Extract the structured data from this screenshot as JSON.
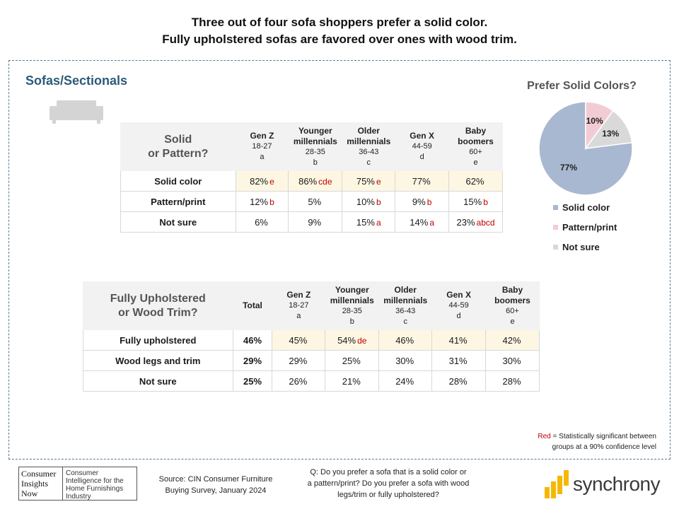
{
  "title_line1": "Three out of four sofa shoppers prefer a solid color.",
  "title_line2": "Fully upholstered sofas are favored over ones with wood trim.",
  "section_title": "Sofas/Sectionals",
  "colors": {
    "accent": "#2e5a78",
    "highlight_row": "#fdf6e3",
    "significance": "#c00000"
  },
  "chart_data": [
    {
      "type": "table",
      "question_line1": "Solid",
      "question_line2": "or Pattern?",
      "columns": [
        {
          "name": "Gen Z",
          "sub1": "18-27",
          "sub2": "a"
        },
        {
          "name": "Younger millennials",
          "sub1": "28-35",
          "sub2": "b"
        },
        {
          "name": "Older millennials",
          "sub1": "36-43",
          "sub2": "c"
        },
        {
          "name": "Gen X",
          "sub1": "44-59",
          "sub2": "d"
        },
        {
          "name": "Baby boomers",
          "sub1": "60+",
          "sub2": "e"
        }
      ],
      "rows": [
        {
          "label": "Solid color",
          "cells": [
            {
              "value": "82%",
              "sig": "e"
            },
            {
              "value": "86%",
              "sig": "cde"
            },
            {
              "value": "75%",
              "sig": "e"
            },
            {
              "value": "77%",
              "sig": ""
            },
            {
              "value": "62%",
              "sig": ""
            }
          ]
        },
        {
          "label": "Pattern/print",
          "cells": [
            {
              "value": "12%",
              "sig": "b"
            },
            {
              "value": "5%",
              "sig": ""
            },
            {
              "value": "10%",
              "sig": "b"
            },
            {
              "value": "9%",
              "sig": "b"
            },
            {
              "value": "15%",
              "sig": "b"
            }
          ]
        },
        {
          "label": "Not sure",
          "cells": [
            {
              "value": "6%",
              "sig": ""
            },
            {
              "value": "9%",
              "sig": ""
            },
            {
              "value": "15%",
              "sig": "a"
            },
            {
              "value": "14%",
              "sig": "a"
            },
            {
              "value": "23%",
              "sig": "abcd"
            }
          ]
        }
      ]
    },
    {
      "type": "table",
      "question_line1": "Fully Upholstered",
      "question_line2": "or Wood Trim?",
      "total_label": "Total",
      "columns": [
        {
          "name": "Gen Z",
          "sub1": "18-27",
          "sub2": "a"
        },
        {
          "name": "Younger millennials",
          "sub1": "28-35",
          "sub2": "b"
        },
        {
          "name": "Older millennials",
          "sub1": "36-43",
          "sub2": "c"
        },
        {
          "name": "Gen X",
          "sub1": "44-59",
          "sub2": "d"
        },
        {
          "name": "Baby boomers",
          "sub1": "60+",
          "sub2": "e"
        }
      ],
      "rows": [
        {
          "label": "Fully upholstered",
          "total": "46%",
          "cells": [
            {
              "value": "45%",
              "sig": ""
            },
            {
              "value": "54%",
              "sig": "de"
            },
            {
              "value": "46%",
              "sig": ""
            },
            {
              "value": "41%",
              "sig": ""
            },
            {
              "value": "42%",
              "sig": ""
            }
          ]
        },
        {
          "label": "Wood legs and trim",
          "total": "29%",
          "cells": [
            {
              "value": "29%",
              "sig": ""
            },
            {
              "value": "25%",
              "sig": ""
            },
            {
              "value": "30%",
              "sig": ""
            },
            {
              "value": "31%",
              "sig": ""
            },
            {
              "value": "30%",
              "sig": ""
            }
          ]
        },
        {
          "label": "Not sure",
          "total": "25%",
          "cells": [
            {
              "value": "26%",
              "sig": ""
            },
            {
              "value": "21%",
              "sig": ""
            },
            {
              "value": "24%",
              "sig": ""
            },
            {
              "value": "28%",
              "sig": ""
            },
            {
              "value": "28%",
              "sig": ""
            }
          ]
        }
      ]
    },
    {
      "type": "pie",
      "title": "Prefer Solid Colors?",
      "slices": [
        {
          "label": "Solid color",
          "value": 77,
          "display": "77%",
          "color": "#a8b8d0"
        },
        {
          "label": "Pattern/print",
          "value": 10,
          "display": "10%",
          "color": "#f2ccd4"
        },
        {
          "label": "Not sure",
          "value": 13,
          "display": "13%",
          "color": "#d9d9d9"
        }
      ],
      "legend_position": "bottom"
    }
  ],
  "significance_note": {
    "red_word": "Red",
    "text": " = Statistically significant between groups at a 90% confidence level"
  },
  "logo_cin": {
    "left_lines": [
      "Consumer",
      "Insights",
      "Now"
    ],
    "right_text": "Consumer Intelligence for the Home Furnishings Industry"
  },
  "source_text": "Source: CIN Consumer Furniture Buying Survey, January 2024",
  "question_text": "Q: Do you prefer a sofa that is a solid color or a pattern/print? Do you prefer a sofa with wood legs/trim or fully upholstered?",
  "brand_name": "synchrony",
  "icons": {
    "sofa": "sofa-icon",
    "brand_mark": "synchrony-mark-icon"
  }
}
